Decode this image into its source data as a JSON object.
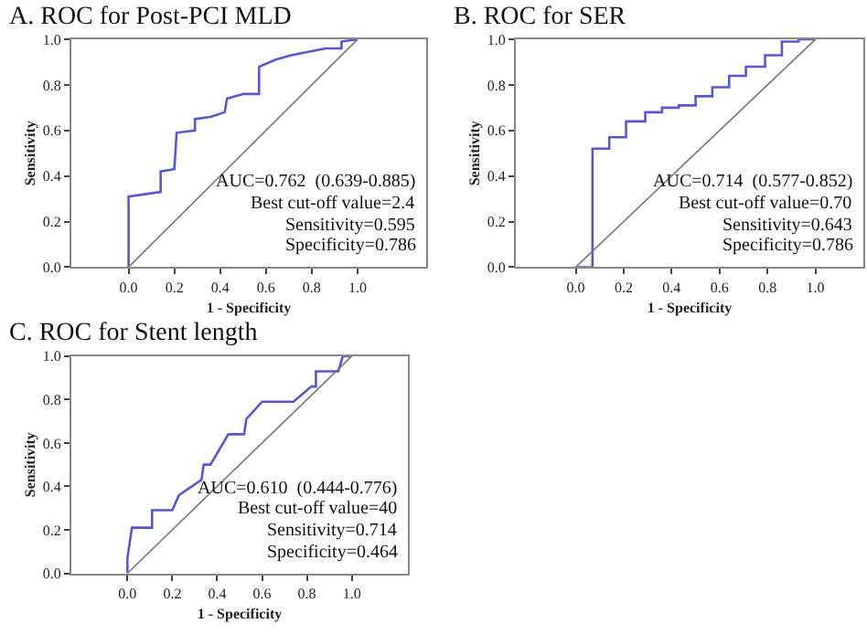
{
  "chart_data": [
    {
      "type": "line",
      "title": "A. ROC for Post-PCI MLD",
      "xlabel": "1 - Specificity",
      "ylabel": "Sensitivity",
      "xlim": [
        -0.25,
        1.3
      ],
      "ylim": [
        0,
        1
      ],
      "xticks": [
        {
          "value": 0,
          "label": "0.0"
        },
        {
          "value": 0.2,
          "label": "0.2"
        },
        {
          "value": 0.4,
          "label": "0.4"
        },
        {
          "value": 0.6,
          "label": "0.6"
        },
        {
          "value": 0.8,
          "label": "0.8"
        },
        {
          "value": 1,
          "label": "1.0"
        }
      ],
      "yticks": [
        {
          "value": 0,
          "label": "0.0"
        },
        {
          "value": 0.2,
          "label": "0.2"
        },
        {
          "value": 0.4,
          "label": "0.4"
        },
        {
          "value": 0.6,
          "label": "0.6"
        },
        {
          "value": 0.8,
          "label": "0.8"
        },
        {
          "value": 1,
          "label": "1.0"
        }
      ],
      "marker": "none",
      "series": [
        {
          "color": "#5555dd",
          "x": [
            0,
            0,
            0.07,
            0.14,
            0.14,
            0.2,
            0.21,
            0.29,
            0.29,
            0.36,
            0.42,
            0.43,
            0.5,
            0.57,
            0.57,
            0.64,
            0.71,
            0.86,
            0.93,
            0.93,
            1
          ],
          "values": [
            0,
            0.31,
            0.32,
            0.33,
            0.42,
            0.43,
            0.59,
            0.6,
            0.65,
            0.66,
            0.68,
            0.74,
            0.76,
            0.76,
            0.88,
            0.91,
            0.93,
            0.96,
            0.96,
            0.99,
            1
          ]
        },
        {
          "color": "#777777",
          "x": [
            0,
            1
          ],
          "values": [
            0,
            1
          ]
        }
      ],
      "annotations": [
        "AUC=0.762  (0.639-0.885)",
        "Best cut-off value=2.4",
        "Sensitivity=0.595",
        "Specificity=0.786"
      ]
    },
    {
      "type": "line",
      "title": "B. ROC for SER",
      "xlabel": "1 - Specificity",
      "ylabel": "Sensitivity",
      "xlim": [
        -0.25,
        1.2
      ],
      "ylim": [
        0,
        1
      ],
      "xticks": [
        {
          "value": 0,
          "label": "0.0"
        },
        {
          "value": 0.2,
          "label": "0.2"
        },
        {
          "value": 0.4,
          "label": "0.4"
        },
        {
          "value": 0.6,
          "label": "0.6"
        },
        {
          "value": 0.8,
          "label": "0.8"
        },
        {
          "value": 1,
          "label": "1.0"
        }
      ],
      "yticks": [
        {
          "value": 0,
          "label": "0.0"
        },
        {
          "value": 0.2,
          "label": "0.2"
        },
        {
          "value": 0.4,
          "label": "0.4"
        },
        {
          "value": 0.6,
          "label": "0.6"
        },
        {
          "value": 0.8,
          "label": "0.8"
        },
        {
          "value": 1,
          "label": "1.0"
        }
      ],
      "marker": "none",
      "series": [
        {
          "color": "#5555dd",
          "x": [
            0,
            0.07,
            0.07,
            0.14,
            0.14,
            0.21,
            0.21,
            0.29,
            0.29,
            0.36,
            0.36,
            0.43,
            0.43,
            0.5,
            0.5,
            0.57,
            0.57,
            0.64,
            0.64,
            0.71,
            0.71,
            0.79,
            0.79,
            0.86,
            0.86,
            0.93,
            0.93,
            1
          ],
          "values": [
            0,
            0,
            0.52,
            0.52,
            0.57,
            0.57,
            0.64,
            0.64,
            0.68,
            0.68,
            0.7,
            0.7,
            0.71,
            0.71,
            0.75,
            0.75,
            0.79,
            0.79,
            0.84,
            0.84,
            0.88,
            0.88,
            0.93,
            0.93,
            0.99,
            0.99,
            1,
            1
          ]
        },
        {
          "color": "#777777",
          "x": [
            0,
            1
          ],
          "values": [
            0,
            1
          ]
        }
      ],
      "annotations": [
        "AUC=0.714  (0.577-0.852)",
        "Best cut-off value=0.70",
        "Sensitivity=0.643",
        "Specificity=0.786"
      ]
    },
    {
      "type": "line",
      "title": "C. ROC for Stent length",
      "xlabel": "1 - Specificity",
      "ylabel": "Sensitivity",
      "xlim": [
        -0.25,
        1.25
      ],
      "ylim": [
        0,
        1
      ],
      "xticks": [
        {
          "value": 0,
          "label": "0.0"
        },
        {
          "value": 0.2,
          "label": "0.2"
        },
        {
          "value": 0.4,
          "label": "0.4"
        },
        {
          "value": 0.6,
          "label": "0.6"
        },
        {
          "value": 0.8,
          "label": "0.8"
        },
        {
          "value": 1,
          "label": "1.0"
        }
      ],
      "yticks": [
        {
          "value": 0,
          "label": "0.0"
        },
        {
          "value": 0.2,
          "label": "0.2"
        },
        {
          "value": 0.4,
          "label": "0.4"
        },
        {
          "value": 0.6,
          "label": "0.6"
        },
        {
          "value": 0.8,
          "label": "0.8"
        },
        {
          "value": 1,
          "label": "1.0"
        }
      ],
      "marker": "none",
      "series": [
        {
          "color": "#5555dd",
          "x": [
            0,
            0,
            0.01,
            0.02,
            0.11,
            0.11,
            0.2,
            0.23,
            0.33,
            0.34,
            0.37,
            0.45,
            0.52,
            0.53,
            0.6,
            0.74,
            0.82,
            0.84,
            0.84,
            0.94,
            0.96,
            1
          ],
          "values": [
            0,
            0.07,
            0.14,
            0.21,
            0.21,
            0.29,
            0.29,
            0.36,
            0.43,
            0.5,
            0.5,
            0.64,
            0.64,
            0.71,
            0.79,
            0.79,
            0.86,
            0.86,
            0.93,
            0.93,
            1,
            1
          ]
        },
        {
          "color": "#777777",
          "x": [
            0,
            1
          ],
          "values": [
            0,
            1
          ]
        }
      ],
      "annotations": [
        "AUC=0.610  (0.444-0.776)",
        "Best cut-off value=40",
        "Sensitivity=0.714",
        "Specificity=0.464"
      ]
    }
  ]
}
